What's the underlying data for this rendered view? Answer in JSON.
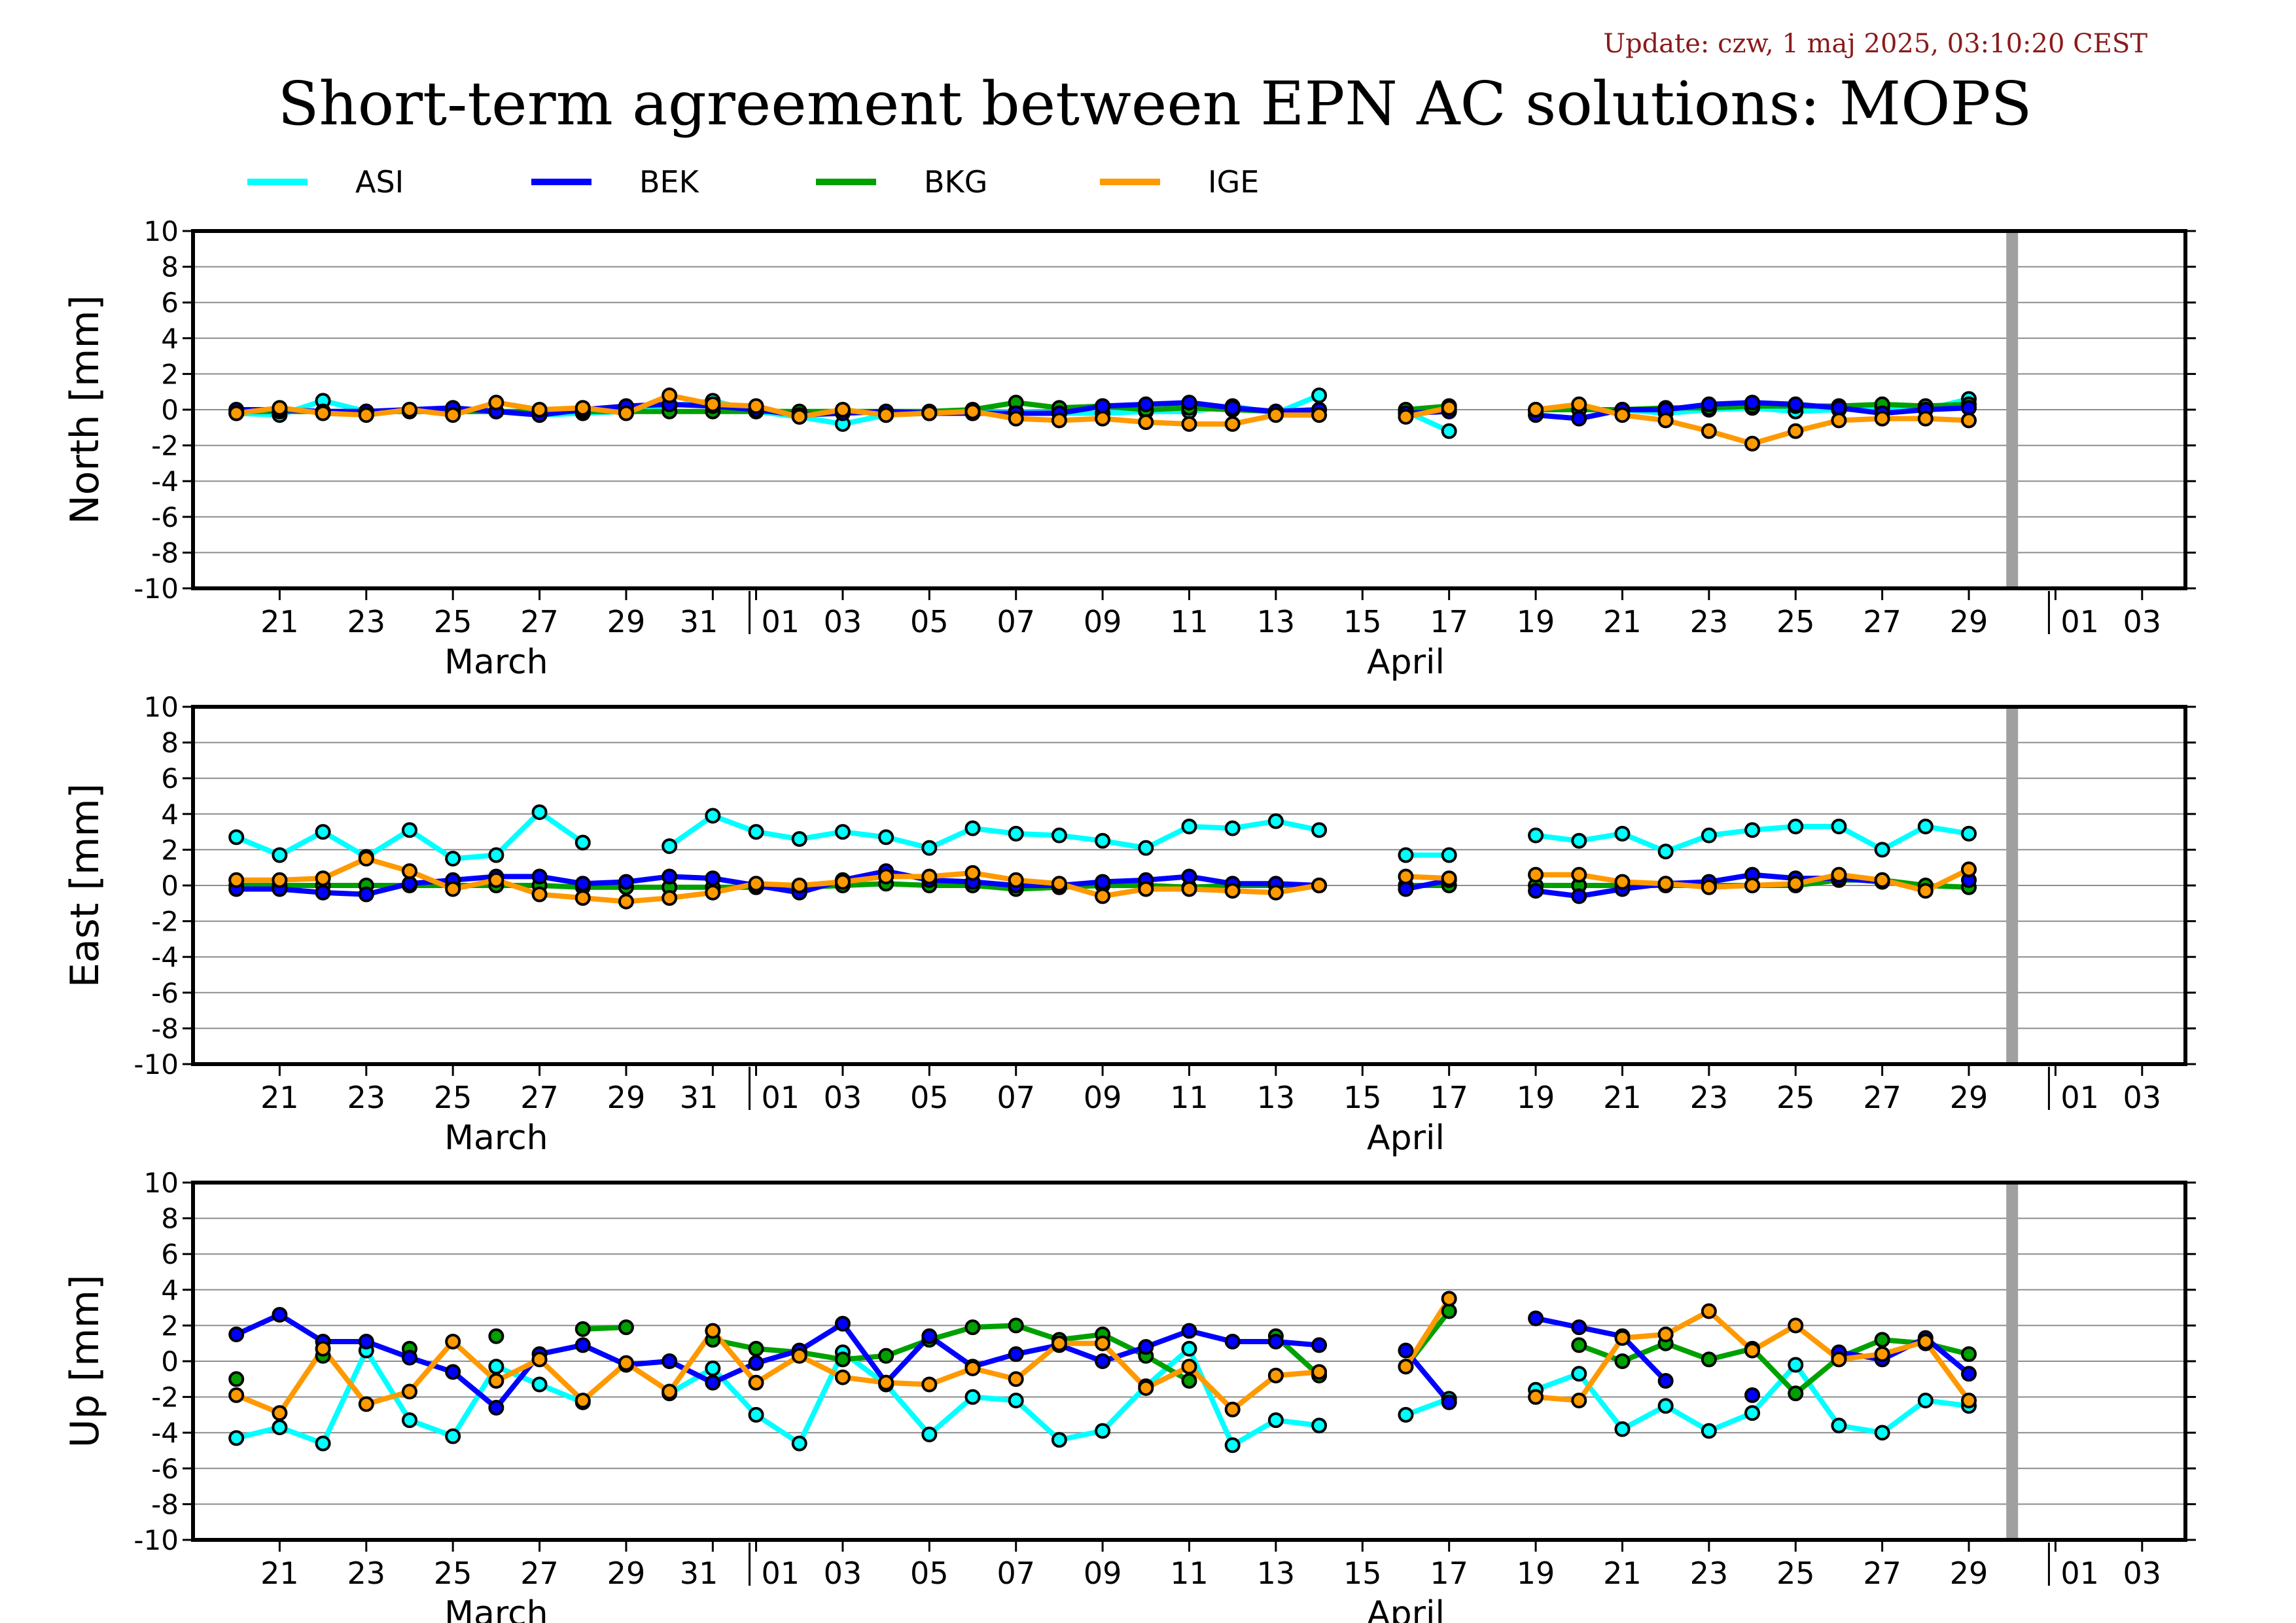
{
  "header": {
    "update": "Update: czw, 1 maj 2025, 03:10:20 CEST",
    "title": "Short-term agreement between EPN AC solutions: MOPS"
  },
  "colors": {
    "ASI": "#00ffff",
    "BEK": "#0000ff",
    "BKG": "#00a000",
    "IGE": "#ff9900",
    "gap_bar": "#a0a0a0"
  },
  "chart_data": {
    "type": "line",
    "legend": [
      "ASI",
      "BEK",
      "BKG",
      "IGE"
    ],
    "legend_placement": "top",
    "x": [
      "2025-03-20",
      "2025-03-21",
      "2025-03-22",
      "2025-03-23",
      "2025-03-24",
      "2025-03-25",
      "2025-03-26",
      "2025-03-27",
      "2025-03-28",
      "2025-03-29",
      "2025-03-30",
      "2025-03-31",
      "2025-04-01",
      "2025-04-02",
      "2025-04-03",
      "2025-04-04",
      "2025-04-05",
      "2025-04-06",
      "2025-04-07",
      "2025-04-08",
      "2025-04-09",
      "2025-04-10",
      "2025-04-11",
      "2025-04-12",
      "2025-04-13",
      "2025-04-14",
      "2025-04-15",
      "2025-04-16",
      "2025-04-17",
      "2025-04-18",
      "2025-04-19",
      "2025-04-20",
      "2025-04-21",
      "2025-04-22",
      "2025-04-23",
      "2025-04-24",
      "2025-04-25",
      "2025-04-26",
      "2025-04-27",
      "2025-04-28",
      "2025-04-29"
    ],
    "xlim": [
      "2025-03-19",
      "2025-05-04"
    ],
    "x_tick_labels": [
      "21",
      "23",
      "25",
      "27",
      "29",
      "31",
      "01",
      "03",
      "05",
      "07",
      "09",
      "11",
      "13",
      "15",
      "17",
      "19",
      "21",
      "23",
      "25",
      "27",
      "29",
      "01",
      "03"
    ],
    "x_month_labels": [
      "March",
      "April"
    ],
    "marker_date": "2025-04-30",
    "grid": true,
    "panels": [
      {
        "ylabel": "North [mm]",
        "ylim": [
          -10,
          10
        ],
        "y_tick_labels": [
          "10",
          "8",
          "6",
          "4",
          "2",
          "0",
          "-2",
          "-4",
          "-6",
          "-8",
          "-10"
        ],
        "series": [
          {
            "name": "ASI",
            "values": [
              -0.2,
              -0.3,
              0.5,
              -0.1,
              0.0,
              -0.1,
              -0.1,
              -0.3,
              -0.2,
              -0.1,
              0.2,
              0.5,
              -0.1,
              -0.4,
              -0.8,
              -0.3,
              -0.2,
              -0.2,
              -0.1,
              -0.2,
              -0.2,
              -0.1,
              -0.1,
              0.2,
              -0.2,
              0.8,
              null,
              -0.1,
              -1.2,
              null,
              -0.1,
              null,
              0.0,
              -0.2,
              0.0,
              0.1,
              -0.1,
              0.0,
              0.1,
              0.0,
              0.6
            ]
          },
          {
            "name": "BEK",
            "values": [
              0.0,
              0.0,
              -0.1,
              -0.1,
              0.0,
              0.1,
              -0.1,
              -0.3,
              0.0,
              0.2,
              0.3,
              0.2,
              0.0,
              -0.3,
              -0.2,
              -0.1,
              -0.2,
              -0.2,
              -0.2,
              -0.2,
              0.2,
              0.3,
              0.4,
              0.1,
              -0.1,
              0.0,
              null,
              -0.2,
              -0.1,
              null,
              -0.3,
              -0.5,
              0.0,
              0.0,
              0.3,
              0.4,
              0.3,
              0.1,
              -0.2,
              0.0,
              0.1
            ]
          },
          {
            "name": "BKG",
            "values": [
              -0.1,
              -0.1,
              -0.1,
              -0.1,
              -0.1,
              -0.1,
              -0.1,
              -0.1,
              -0.1,
              -0.1,
              -0.1,
              -0.1,
              -0.1,
              -0.1,
              -0.1,
              -0.1,
              -0.1,
              0.0,
              0.4,
              0.1,
              0.2,
              0.0,
              0.1,
              0.0,
              -0.1,
              0.0,
              null,
              0.0,
              0.2,
              null,
              0.0,
              0.0,
              0.0,
              0.1,
              0.1,
              0.2,
              0.2,
              0.2,
              0.3,
              0.2,
              0.3
            ]
          },
          {
            "name": "IGE",
            "values": [
              -0.2,
              0.1,
              -0.2,
              -0.3,
              0.0,
              -0.3,
              0.4,
              0.0,
              0.1,
              -0.2,
              0.8,
              0.3,
              0.2,
              -0.4,
              0.0,
              -0.3,
              -0.2,
              -0.1,
              -0.5,
              -0.6,
              -0.5,
              -0.7,
              -0.8,
              -0.8,
              -0.3,
              -0.3,
              null,
              -0.4,
              0.1,
              null,
              0.0,
              0.3,
              -0.3,
              -0.6,
              -1.2,
              -1.9,
              -1.2,
              -0.6,
              -0.5,
              -0.5,
              -0.6
            ]
          }
        ]
      },
      {
        "ylabel": "East [mm]",
        "ylim": [
          -10,
          10
        ],
        "y_tick_labels": [
          "10",
          "8",
          "6",
          "4",
          "2",
          "0",
          "-2",
          "-4",
          "-6",
          "-8",
          "-10"
        ],
        "series": [
          {
            "name": "ASI",
            "values": [
              2.7,
              1.7,
              3.0,
              1.6,
              3.1,
              1.5,
              1.7,
              4.1,
              2.4,
              null,
              2.2,
              3.9,
              3.0,
              2.6,
              3.0,
              2.7,
              2.1,
              3.2,
              2.9,
              2.8,
              2.5,
              2.1,
              3.3,
              3.2,
              3.6,
              3.1,
              null,
              1.7,
              1.7,
              null,
              2.8,
              2.5,
              2.9,
              1.9,
              2.8,
              3.1,
              3.3,
              3.3,
              2.0,
              3.3,
              2.9
            ]
          },
          {
            "name": "BEK",
            "values": [
              -0.2,
              -0.2,
              -0.4,
              -0.5,
              0.1,
              0.3,
              0.5,
              0.5,
              0.1,
              0.2,
              0.5,
              0.4,
              0.0,
              -0.4,
              0.3,
              0.8,
              0.3,
              0.2,
              0.0,
              0.0,
              0.2,
              0.3,
              0.5,
              0.1,
              0.1,
              0.0,
              null,
              -0.2,
              0.3,
              null,
              -0.3,
              -0.6,
              -0.2,
              0.1,
              0.2,
              0.6,
              0.4,
              0.4,
              0.2,
              null,
              0.3
            ]
          },
          {
            "name": "BKG",
            "values": [
              0.0,
              0.0,
              0.0,
              0.0,
              0.0,
              0.0,
              0.0,
              0.0,
              -0.1,
              -0.1,
              -0.1,
              -0.1,
              -0.1,
              -0.1,
              0.0,
              0.1,
              0.0,
              0.0,
              -0.2,
              -0.1,
              0.0,
              0.0,
              -0.1,
              0.0,
              0.0,
              0.0,
              null,
              0.0,
              0.0,
              null,
              0.0,
              0.0,
              0.0,
              0.0,
              0.0,
              0.0,
              0.0,
              0.3,
              0.3,
              0.0,
              -0.1
            ]
          },
          {
            "name": "IGE",
            "values": [
              0.3,
              0.3,
              0.4,
              1.5,
              0.8,
              -0.2,
              0.3,
              -0.5,
              -0.7,
              -0.9,
              -0.7,
              -0.4,
              0.1,
              0.0,
              0.2,
              0.5,
              0.5,
              0.7,
              0.3,
              0.1,
              -0.6,
              -0.2,
              -0.2,
              -0.3,
              -0.4,
              0.0,
              null,
              0.5,
              0.4,
              null,
              0.6,
              0.6,
              0.2,
              0.1,
              -0.1,
              0.0,
              0.1,
              0.6,
              0.3,
              -0.3,
              0.9
            ]
          }
        ]
      },
      {
        "ylabel": "Up [mm]",
        "ylim": [
          -10,
          10
        ],
        "y_tick_labels": [
          "10",
          "8",
          "6",
          "4",
          "2",
          "0",
          "-2",
          "-4",
          "-6",
          "-8",
          "-10"
        ],
        "series": [
          {
            "name": "ASI",
            "values": [
              -4.3,
              -3.7,
              -4.6,
              0.6,
              -3.3,
              -4.2,
              -0.3,
              -1.3,
              -2.3,
              null,
              -1.8,
              -0.4,
              -3.0,
              -4.6,
              0.5,
              -1.3,
              -4.1,
              -2.0,
              -2.2,
              -4.4,
              -3.9,
              -1.4,
              0.7,
              -4.7,
              -3.3,
              -3.6,
              null,
              -3.0,
              -2.1,
              null,
              -1.6,
              -0.7,
              -3.8,
              -2.5,
              -3.9,
              -2.9,
              -0.2,
              -3.6,
              -4.0,
              -2.2,
              -2.5
            ]
          },
          {
            "name": "BEK",
            "values": [
              1.5,
              2.6,
              1.1,
              1.1,
              0.2,
              -0.6,
              -2.6,
              0.4,
              0.9,
              -0.2,
              0.0,
              -1.2,
              -0.1,
              0.6,
              2.1,
              -1.2,
              1.4,
              -0.3,
              0.4,
              0.9,
              0.0,
              0.8,
              1.7,
              1.1,
              1.1,
              0.9,
              null,
              0.6,
              -2.3,
              null,
              2.4,
              1.9,
              1.4,
              -1.1,
              null,
              -1.9,
              null,
              0.5,
              0.1,
              1.3,
              -0.7
            ]
          },
          {
            "name": "BKG",
            "values": [
              -1.0,
              null,
              0.3,
              null,
              0.7,
              null,
              1.4,
              null,
              1.8,
              1.9,
              null,
              1.2,
              0.7,
              0.5,
              0.1,
              0.3,
              1.2,
              1.9,
              2.0,
              1.2,
              1.5,
              0.3,
              -1.1,
              null,
              1.4,
              -0.8,
              null,
              -0.3,
              2.8,
              null,
              null,
              0.9,
              0.0,
              1.0,
              0.1,
              0.7,
              -1.8,
              0.2,
              1.2,
              1.0,
              0.4
            ]
          },
          {
            "name": "IGE",
            "values": [
              -1.9,
              -2.9,
              0.7,
              -2.4,
              -1.7,
              1.1,
              -1.1,
              0.1,
              -2.2,
              -0.1,
              -1.7,
              1.7,
              -1.2,
              0.3,
              -0.9,
              -1.2,
              -1.3,
              -0.4,
              -1.0,
              1.0,
              1.0,
              -1.5,
              -0.3,
              -2.7,
              -0.8,
              -0.6,
              null,
              -0.3,
              3.5,
              null,
              -2.0,
              -2.2,
              1.3,
              1.5,
              2.8,
              0.6,
              2.0,
              0.1,
              0.4,
              1.1,
              -2.2
            ]
          }
        ]
      }
    ]
  }
}
